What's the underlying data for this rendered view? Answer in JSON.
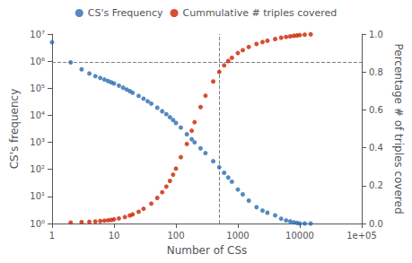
{
  "chart_data": {
    "type": "scatter",
    "xlabel": "Number of CSs",
    "ylabel": "CS's frequency",
    "y2label": "Percentage # of triples covered",
    "log": true,
    "grid": false,
    "legend": "top",
    "marker": "circle",
    "xlim": [
      1,
      100000
    ],
    "xticks": [
      1,
      10,
      100,
      1000,
      10000,
      {
        "value": 100000,
        "label": "1e+05"
      }
    ],
    "ylim": [
      1,
      10000000
    ],
    "yticks": [
      {
        "value": 1,
        "label": "10⁰"
      },
      {
        "value": 10,
        "label": "10¹"
      },
      {
        "value": 100,
        "label": "10²"
      },
      {
        "value": 1000,
        "label": "10³"
      },
      {
        "value": 10000,
        "label": "10⁴"
      },
      {
        "value": 100000,
        "label": "10⁵"
      },
      {
        "value": 1000000,
        "label": "10⁶"
      },
      {
        "value": 10000000,
        "label": "10⁷"
      }
    ],
    "y2lim": [
      0,
      1
    ],
    "y2ticks": [
      {
        "value": 0,
        "label": "0.0"
      },
      0.2,
      0.4,
      0.6,
      0.8,
      {
        "value": 1,
        "label": "1.0"
      }
    ],
    "vlines": [
      500
    ],
    "y2_hlines": [
      0.85
    ],
    "series": [
      {
        "name": "CS's Frequency",
        "color": "#2b6cb0",
        "x": [
          1,
          2,
          3,
          4,
          5,
          6,
          7,
          8,
          9,
          10,
          12,
          14,
          16,
          18,
          20,
          25,
          30,
          35,
          40,
          50,
          60,
          70,
          80,
          90,
          100,
          120,
          150,
          180,
          200,
          250,
          300,
          400,
          500,
          600,
          700,
          800,
          1000,
          1200,
          1500,
          2000,
          2500,
          3000,
          4000,
          5000,
          6000,
          7000,
          8000,
          9000,
          10000,
          12000,
          15000
        ],
        "values": [
          5000000.0,
          900000.0,
          500000.0,
          350000.0,
          280000.0,
          240000.0,
          210000.0,
          185000.0,
          165000.0,
          150000.0,
          125000.0,
          105000.0,
          90000.0,
          78000.0,
          68000.0,
          52000.0,
          41000.0,
          33000.0,
          27000.0,
          19000.0,
          14000.0,
          11000.0,
          8500,
          6700,
          5200,
          3500,
          2000,
          1300,
          1000,
          600,
          400,
          200,
          120,
          75,
          50,
          35,
          18,
          12,
          7,
          4,
          3,
          2.5,
          2,
          1.5,
          1.3,
          1.2,
          1.1,
          1.05,
          1,
          1,
          1
        ]
      },
      {
        "name": "Cummulative # triples covered",
        "color": "#cc2200",
        "axis": "y2",
        "x": [
          2,
          3,
          4,
          5,
          6,
          7,
          8,
          9,
          10,
          12,
          15,
          18,
          20,
          25,
          30,
          40,
          50,
          60,
          70,
          80,
          90,
          100,
          120,
          150,
          180,
          200,
          250,
          300,
          400,
          500,
          600,
          700,
          800,
          1000,
          1200,
          1500,
          2000,
          2500,
          3000,
          4000,
          5000,
          6000,
          7000,
          8000,
          9000,
          10000,
          12000,
          15000
        ],
        "values": [
          0.005,
          0.007,
          0.009,
          0.011,
          0.013,
          0.015,
          0.017,
          0.019,
          0.022,
          0.027,
          0.034,
          0.042,
          0.048,
          0.062,
          0.078,
          0.105,
          0.135,
          0.165,
          0.195,
          0.225,
          0.258,
          0.29,
          0.35,
          0.42,
          0.49,
          0.535,
          0.615,
          0.675,
          0.75,
          0.8,
          0.835,
          0.858,
          0.875,
          0.9,
          0.915,
          0.932,
          0.948,
          0.958,
          0.965,
          0.974,
          0.981,
          0.985,
          0.988,
          0.991,
          0.993,
          0.995,
          0.997,
          0.999
        ]
      }
    ]
  }
}
